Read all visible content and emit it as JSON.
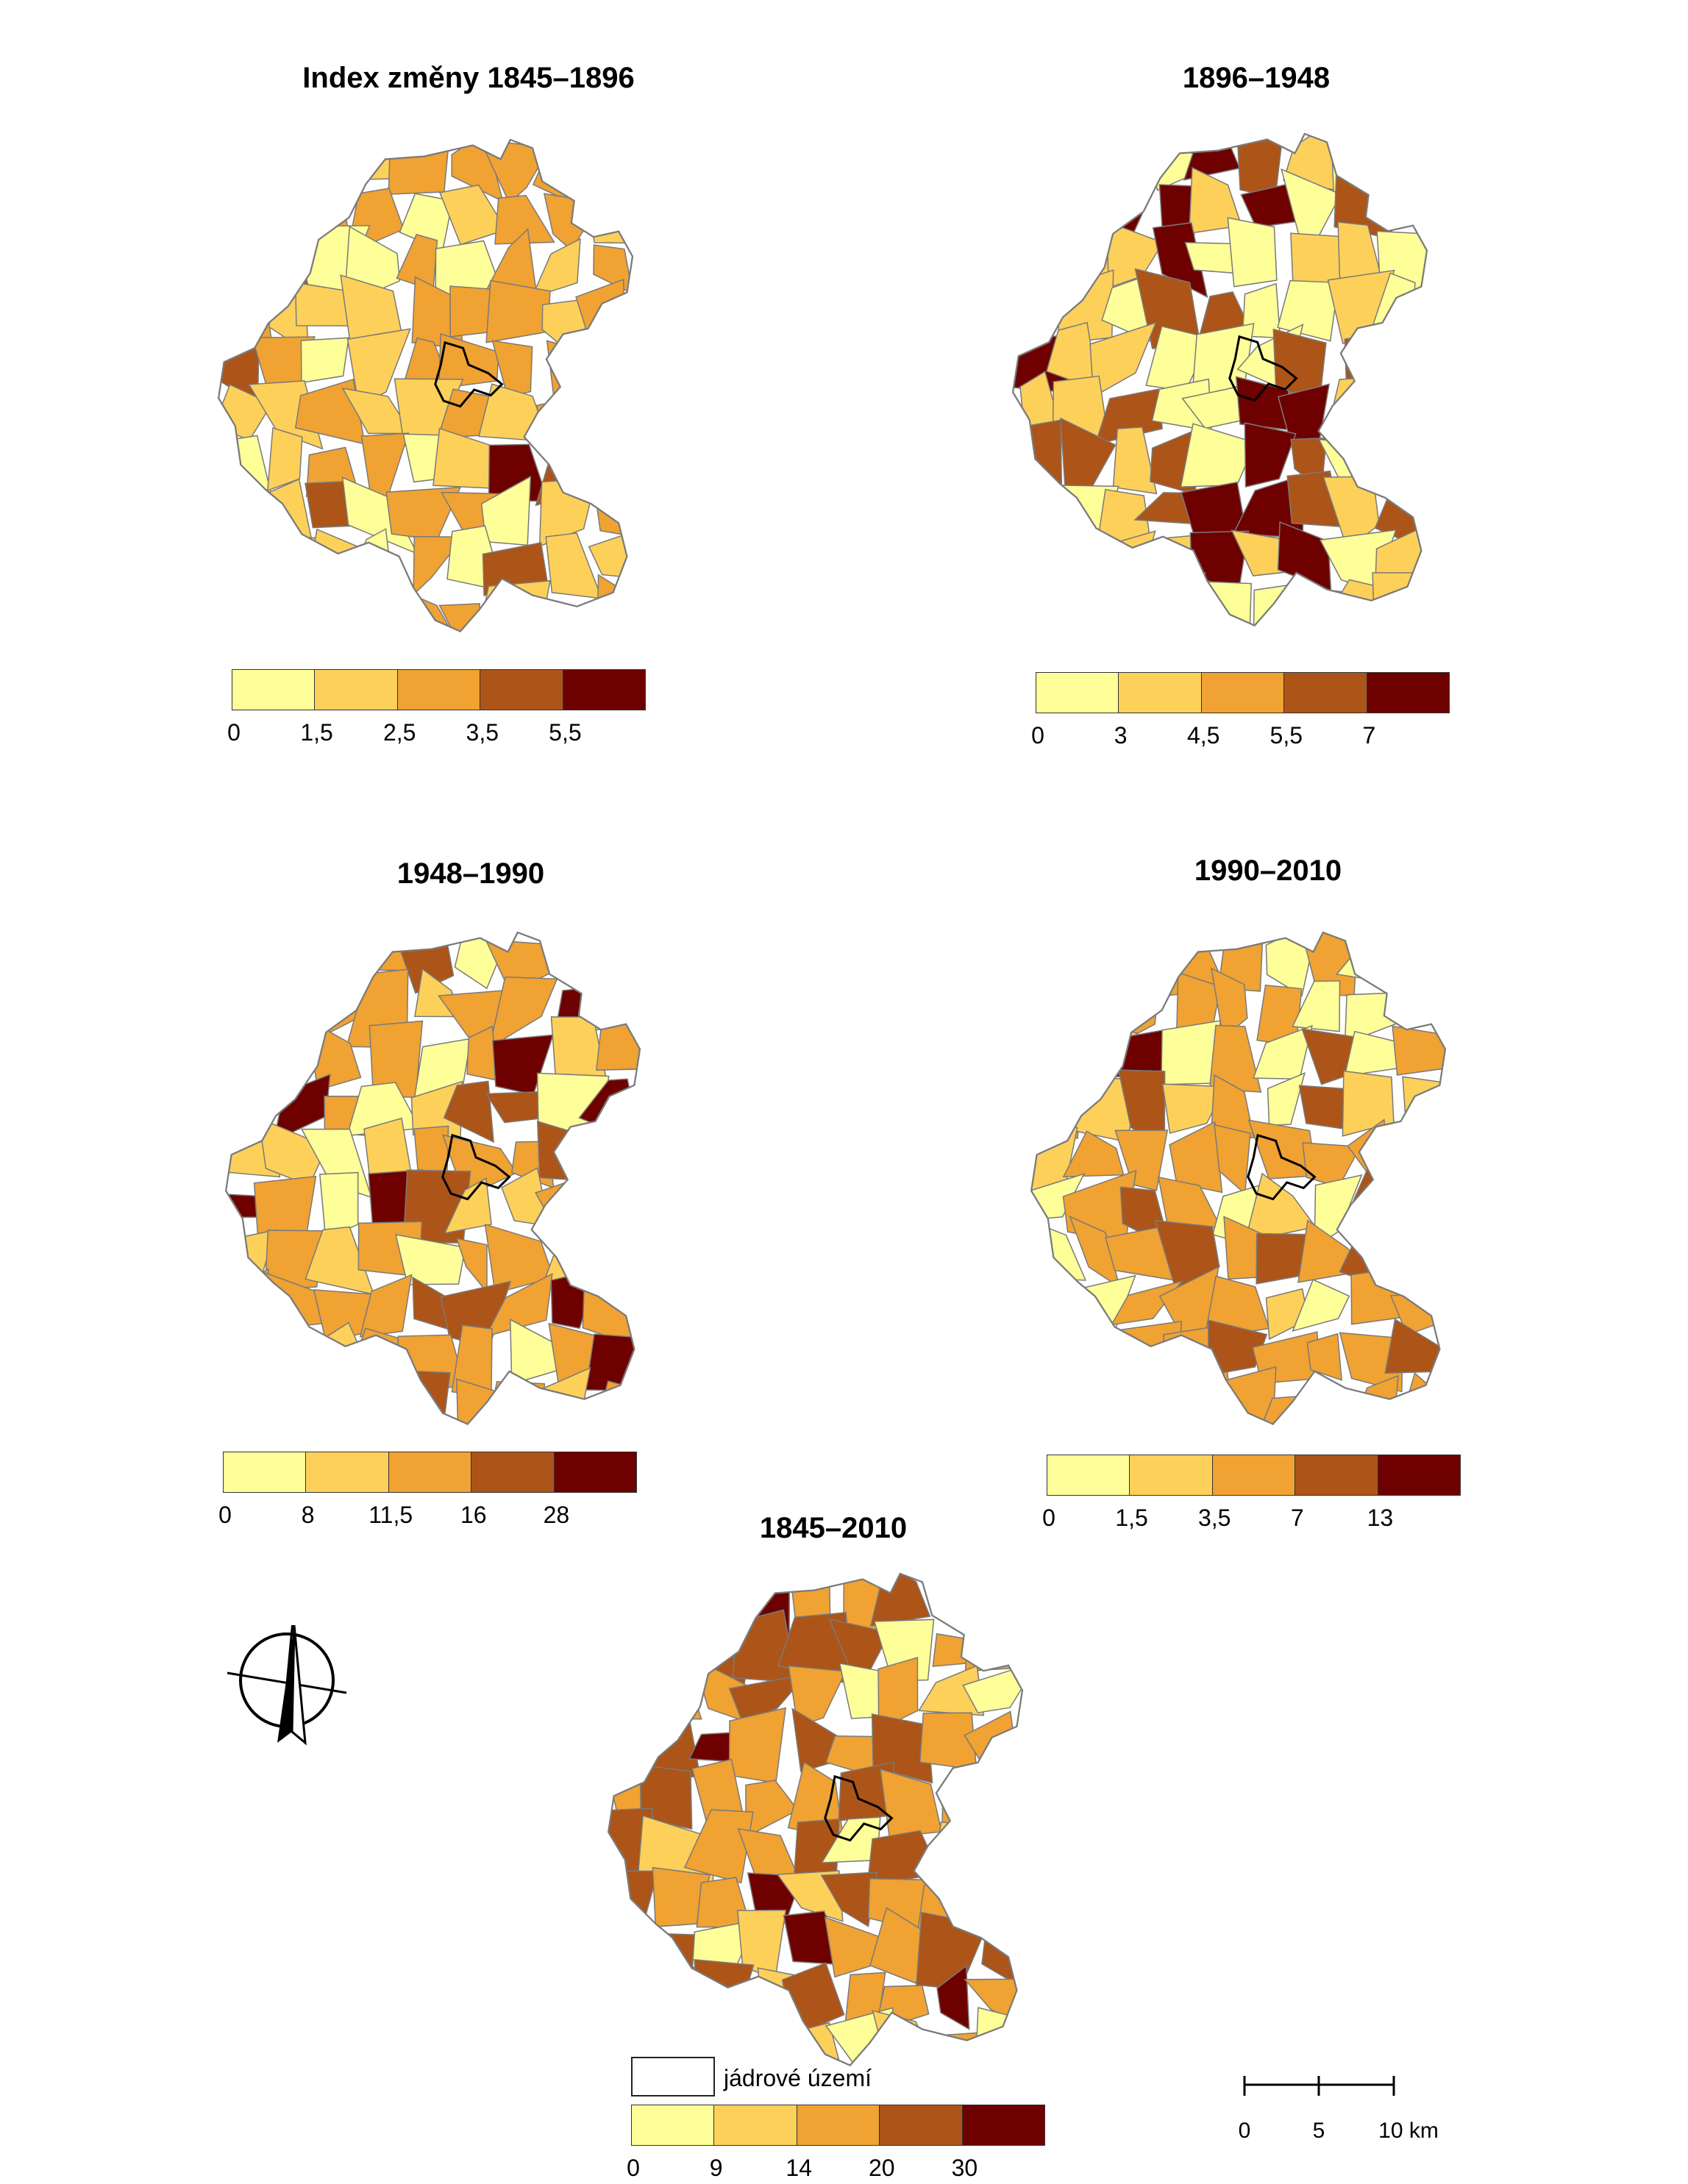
{
  "colors": {
    "class_1": "#ffff99",
    "class_2": "#fdd05a",
    "class_3": "#f0a232",
    "class_4": "#ad5418",
    "class_5": "#6e0000",
    "border": "#7a7a7a",
    "core_outline": "#000000"
  },
  "maps": [
    {
      "id": "m1",
      "title": "Index změny 1845–1896",
      "legend_breaks": [
        "0",
        "1,5",
        "2,5",
        "3,5",
        "5,5"
      ],
      "dominant_classes": [
        3,
        2,
        1,
        4
      ]
    },
    {
      "id": "m2",
      "title": "1896–1948",
      "legend_breaks": [
        "0",
        "3",
        "4,5",
        "5,5",
        "7"
      ],
      "dominant_classes": [
        2,
        1,
        4,
        5
      ]
    },
    {
      "id": "m3",
      "title": "1948–1990",
      "legend_breaks": [
        "0",
        "8",
        "11,5",
        "16",
        "28"
      ],
      "dominant_classes": [
        3,
        2,
        4,
        1
      ]
    },
    {
      "id": "m4",
      "title": "1990–2010",
      "legend_breaks": [
        "0",
        "1,5",
        "3,5",
        "7",
        "13"
      ],
      "dominant_classes": [
        3,
        1,
        4,
        2
      ]
    },
    {
      "id": "m5",
      "title": "1845–2010",
      "legend_breaks": [
        "0",
        "9",
        "14",
        "20",
        "30"
      ],
      "dominant_classes": [
        3,
        4,
        2,
        1
      ]
    }
  ],
  "core_legend_label": "jádrové území",
  "scale": {
    "ticks": [
      "0",
      "5",
      "10 km"
    ]
  },
  "north_arrow": {
    "icon": "north-arrow-icon"
  }
}
